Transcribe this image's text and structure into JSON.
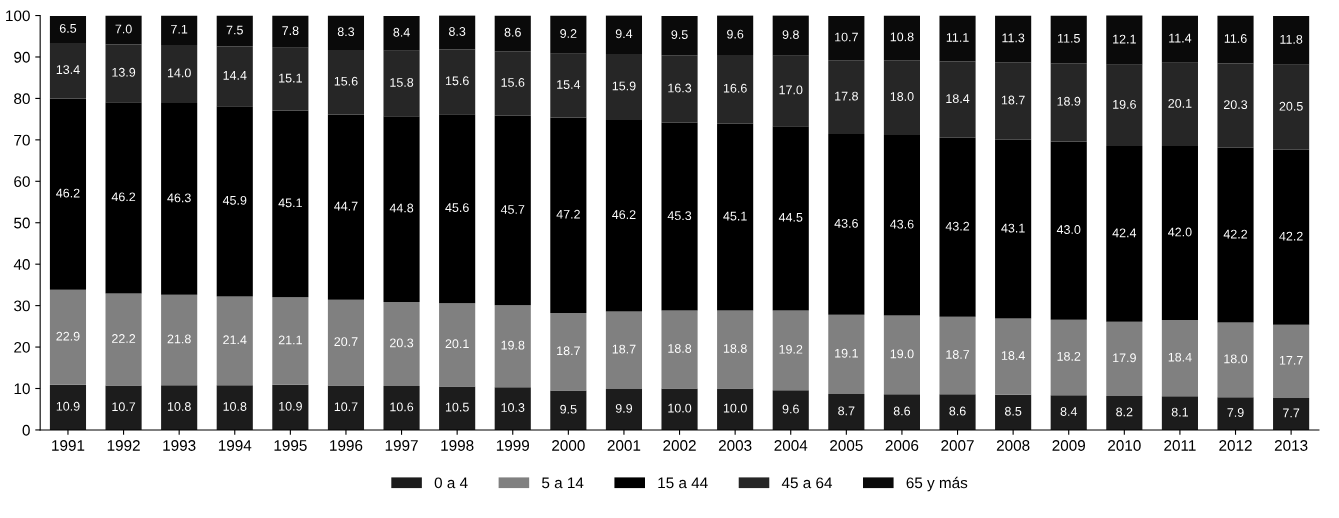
{
  "chart_data": {
    "type": "bar",
    "stacked": true,
    "grid": false,
    "legend": "bottom",
    "categories": [
      "1991",
      "1992",
      "1993",
      "1994",
      "1995",
      "1996",
      "1997",
      "1998",
      "1999",
      "2000",
      "2001",
      "2002",
      "2003",
      "2004",
      "2005",
      "2006",
      "2007",
      "2008",
      "2009",
      "2010",
      "2011",
      "2012",
      "2013"
    ],
    "ylim": [
      0,
      100
    ],
    "yticks": [
      0,
      10,
      20,
      30,
      40,
      50,
      60,
      70,
      80,
      90,
      100
    ],
    "series": [
      {
        "name": "0 a 4",
        "color": "#1c1c1c",
        "values": [
          10.9,
          10.7,
          10.8,
          10.8,
          10.9,
          10.7,
          10.6,
          10.5,
          10.3,
          9.5,
          9.9,
          10.0,
          10.0,
          9.6,
          8.7,
          8.6,
          8.6,
          8.5,
          8.4,
          8.2,
          8.1,
          7.9,
          7.7
        ],
        "value_labels": [
          "10.9",
          "10.7",
          "10.8",
          "10.8",
          "10.9",
          "10.7",
          "10.6",
          "10.5",
          "10.3",
          "9.5",
          "9.9",
          "10.0",
          "10.0",
          "9.6",
          "8.7",
          "8.6",
          "8.6",
          "8.5",
          "8.4",
          "8.2",
          "8.1",
          "7.9",
          "7.7"
        ]
      },
      {
        "name": "5 a 14",
        "color": "#808080",
        "values": [
          22.9,
          22.2,
          21.8,
          21.4,
          21.1,
          20.7,
          20.3,
          20.1,
          19.8,
          18.7,
          18.7,
          18.8,
          18.8,
          19.2,
          19.1,
          19.0,
          18.7,
          18.4,
          18.2,
          17.9,
          18.4,
          18.0,
          17.7
        ],
        "value_labels": [
          "22.9",
          "22.2",
          "21.8",
          "21.4",
          "21.1",
          "20.7",
          "20.3",
          "20.1",
          "19.8",
          "18.7",
          "18.7",
          "18.8",
          "18.8",
          "19.2",
          "19.1",
          "19.0",
          "18.7",
          "18.4",
          "18.2",
          "17.9",
          "18.4",
          "18.0",
          "17.7"
        ]
      },
      {
        "name": "15 a 44",
        "color": "#000000",
        "values": [
          46.2,
          46.2,
          46.3,
          45.9,
          45.1,
          44.7,
          44.8,
          45.6,
          45.7,
          47.2,
          46.2,
          45.3,
          45.1,
          44.5,
          43.6,
          43.6,
          43.2,
          43.1,
          43.0,
          42.4,
          42.0,
          42.2,
          42.2
        ],
        "value_labels": [
          "46.2",
          "46.2",
          "46.3",
          "45.9",
          "45.1",
          "44.7",
          "44.8",
          "45.6",
          "45.7",
          "47.2",
          "46.2",
          "45.3",
          "45.1",
          "44.5",
          "43.6",
          "43.6",
          "43.2",
          "43.1",
          "43.0",
          "42.4",
          "42.0",
          "42.2",
          "42.2"
        ]
      },
      {
        "name": "45 a 64",
        "color": "#262626",
        "values": [
          13.4,
          13.9,
          14.0,
          14.4,
          15.1,
          15.6,
          15.8,
          15.6,
          15.6,
          15.4,
          15.9,
          16.3,
          16.6,
          17.0,
          17.8,
          18.0,
          18.4,
          18.7,
          18.9,
          19.6,
          20.1,
          20.3,
          20.5
        ],
        "value_labels": [
          "13.4",
          "13.9",
          "14.0",
          "14.4",
          "15.1",
          "15.6",
          "15.8",
          "15.6",
          "15.6",
          "15.4",
          "15.9",
          "16.3",
          "16.6",
          "17.0",
          "17.8",
          "18.0",
          "18.4",
          "18.7",
          "18.9",
          "19.6",
          "20.1",
          "20.3",
          "20.5"
        ]
      },
      {
        "name": "65 y más",
        "color": "#0a0a0a",
        "values": [
          6.5,
          7.0,
          7.1,
          7.5,
          7.8,
          8.3,
          8.4,
          8.3,
          8.6,
          9.2,
          9.4,
          9.5,
          9.6,
          9.8,
          10.7,
          10.8,
          11.1,
          11.3,
          11.5,
          12.1,
          11.4,
          11.6,
          11.8
        ],
        "value_labels": [
          "6.5",
          "7.0",
          "7.1",
          "7.5",
          "7.8",
          "8.3",
          "8.4",
          "8.3",
          "8.6",
          "9.2",
          "9.4",
          "9.5",
          "9.6",
          "9.8",
          "10.7",
          "10.8",
          "11.1",
          "11.3",
          "11.5",
          "12.1",
          "11.4",
          "11.6",
          "11.8"
        ]
      }
    ]
  }
}
